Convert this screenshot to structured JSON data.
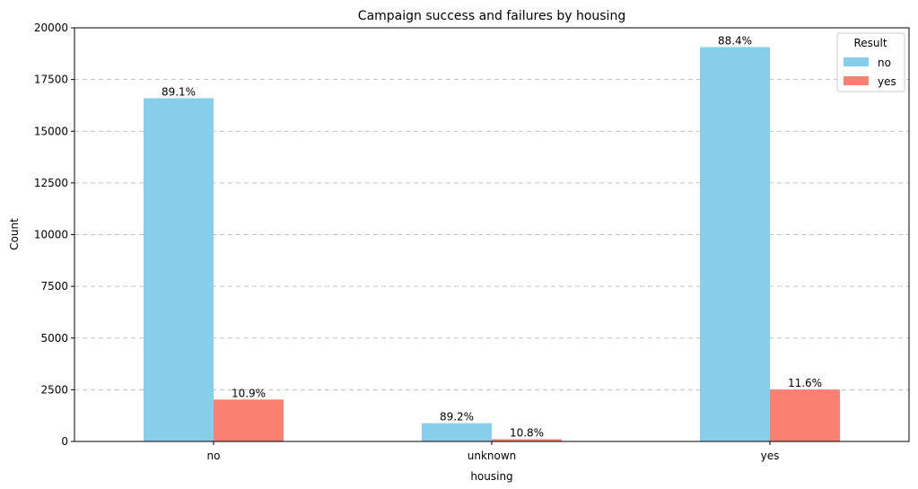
{
  "chart_data": {
    "type": "bar",
    "title": "Campaign success and failures by housing",
    "xlabel": "housing",
    "ylabel": "Count",
    "categories": [
      "no",
      "unknown",
      "yes"
    ],
    "ylim": [
      0,
      20000
    ],
    "yticks": [
      0,
      2500,
      5000,
      7500,
      10000,
      12500,
      15000,
      17500,
      20000
    ],
    "grid": "y-dashed",
    "legend": {
      "title": "Result",
      "placement": "top-right"
    },
    "series": [
      {
        "name": "no",
        "color": "#87CEEB",
        "values": [
          16596,
          883,
          19069
        ],
        "labels": [
          "89.1%",
          "89.2%",
          "88.4%"
        ]
      },
      {
        "name": "yes",
        "color": "#FA8072",
        "values": [
          2026,
          107,
          2507
        ],
        "labels": [
          "10.9%",
          "10.8%",
          "11.6%"
        ]
      }
    ]
  }
}
